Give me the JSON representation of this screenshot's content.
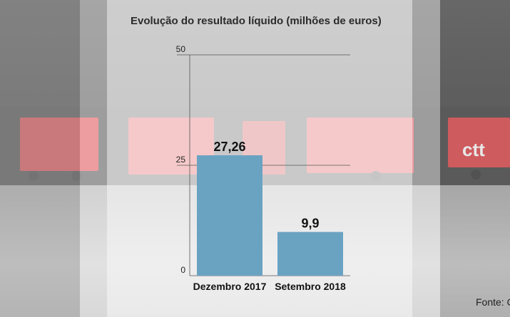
{
  "chart_data": {
    "type": "bar",
    "title": "Evolução do resultado líquido (milhões de euros)",
    "categories": [
      "Dezembro 2017",
      "Setembro 2018"
    ],
    "values": [
      27.26,
      9.9
    ],
    "value_labels": [
      "27,26",
      "9,9"
    ],
    "ylim": [
      0,
      50
    ],
    "yticks": [
      0,
      25,
      50
    ],
    "ytick_labels": [
      "0",
      "25",
      "50"
    ],
    "xlabel": "",
    "ylabel": "",
    "grid": true,
    "bar_color": "#6aa3c2"
  },
  "source_text": "Fonte: C",
  "logo_text": "ctt"
}
